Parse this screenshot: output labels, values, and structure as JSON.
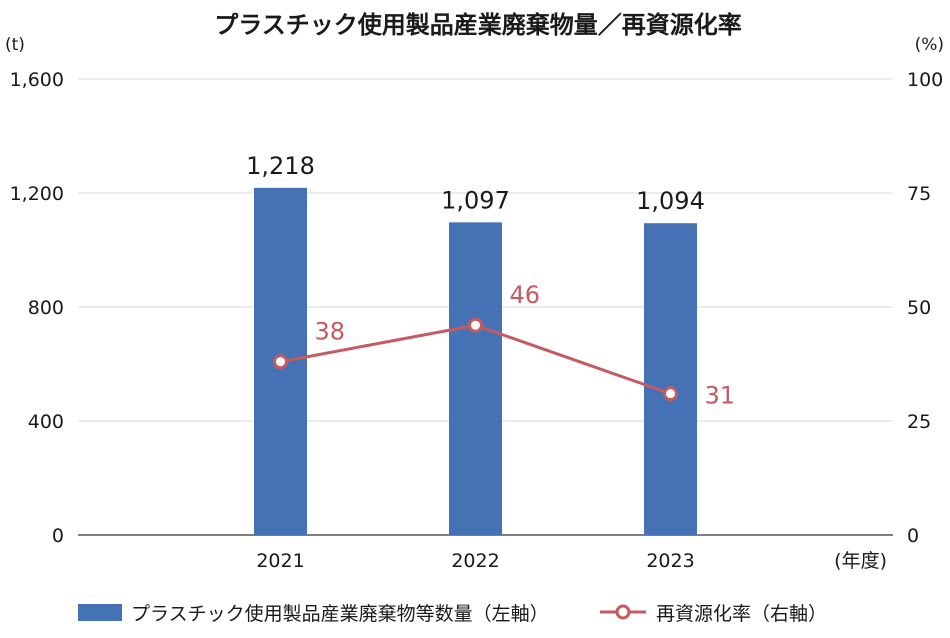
{
  "chart_data": {
    "type": "bar",
    "title": "プラスチック使用製品産業廃棄物量／再資源化率",
    "left_unit": "(t)",
    "right_unit": "(%)",
    "x_unit": "(年度)",
    "categories": [
      "2021",
      "2022",
      "2023"
    ],
    "left_axis": {
      "ylim": [
        0,
        1600
      ],
      "ticks": [
        "0",
        "400",
        "800",
        "1,200",
        "1,600"
      ]
    },
    "right_axis": {
      "ylim": [
        0,
        100
      ],
      "ticks": [
        "0",
        "25",
        "50",
        "75",
        "100"
      ]
    },
    "grid": true,
    "legend_position": "bottom",
    "series": [
      {
        "name": "プラスチック使用製品産業廃棄物等数量（左軸）",
        "type": "bar",
        "axis": "left",
        "color": "#4472b4",
        "values": [
          1218,
          1097,
          1094
        ],
        "labels": [
          "1,218",
          "1,097",
          "1,094"
        ]
      },
      {
        "name": "再資源化率（右軸）",
        "type": "line",
        "axis": "right",
        "color": "#c55a61",
        "values": [
          38,
          46,
          31
        ],
        "labels": [
          "38",
          "46",
          "31"
        ]
      }
    ]
  }
}
